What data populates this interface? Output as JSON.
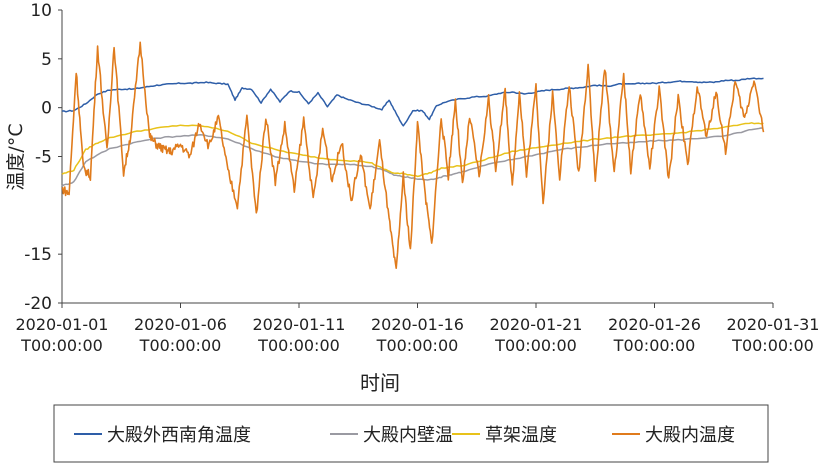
{
  "chart_data": {
    "type": "line",
    "title": "",
    "xlabel": "时间",
    "ylabel": "温度/°C",
    "ylim": [
      -20,
      10
    ],
    "y_ticks": [
      10,
      5,
      0,
      -5,
      -15,
      -20
    ],
    "y_tick_labels": [
      "10",
      "5",
      "0",
      "-5",
      "-15",
      "-20"
    ],
    "y_ticks_note": "tick labels as printed: 10, 5, 0, -5, -15, -20 (labels after -5 appear to skip -10 in the original figure)",
    "x_range_days": [
      0,
      30
    ],
    "x_ticks": [
      {
        "day": 0,
        "line1": "2020-01-01",
        "line2": "T00:00:00"
      },
      {
        "day": 5,
        "line1": "2020-01-06",
        "line2": "T00:00:00"
      },
      {
        "day": 10,
        "line1": "2020-01-11",
        "line2": "T00:00:00"
      },
      {
        "day": 15,
        "line1": "2020-01-16",
        "line2": "T00:00:00"
      },
      {
        "day": 20,
        "line1": "2020-01-21",
        "line2": "T00:00:00"
      },
      {
        "day": 25,
        "line1": "2020-01-26",
        "line2": "T00:00:00"
      },
      {
        "day": 30,
        "line1": "2020-01-31",
        "line2": "T00:00:00"
      }
    ],
    "legend_position": "bottom",
    "series": [
      {
        "name": "大殿外西南角温度",
        "color": "#2e5ea8",
        "style": "smooth",
        "days": [
          0,
          0.5,
          1,
          1.5,
          2,
          2.5,
          3,
          3.5,
          4,
          4.5,
          5,
          5.5,
          6,
          6.5,
          7,
          7.3,
          7.6,
          8,
          8.4,
          8.8,
          9.2,
          9.6,
          10,
          10.4,
          10.8,
          11.2,
          11.6,
          12,
          12.5,
          13,
          13.5,
          13.8,
          14.1,
          14.4,
          14.8,
          15.2,
          15.5,
          15.8,
          16.2,
          16.8,
          17.4,
          18,
          18.5,
          19,
          19.5,
          20,
          20.5,
          21,
          21.5,
          22,
          22.5,
          23,
          23.5,
          24,
          24.5,
          25,
          25.5,
          26,
          26.5,
          27,
          27.5,
          28,
          28.5,
          29,
          29.6
        ],
        "values": [
          -0.4,
          -0.3,
          0.4,
          1.4,
          1.8,
          1.9,
          1.9,
          2.1,
          2.3,
          2.4,
          2.5,
          2.5,
          2.6,
          2.5,
          2.4,
          0.8,
          2.0,
          1.9,
          0.5,
          1.9,
          0.6,
          1.7,
          1.6,
          0.4,
          1.5,
          0.1,
          1.3,
          0.9,
          0.5,
          0.2,
          -0.2,
          0.8,
          -0.6,
          -1.9,
          -0.3,
          -0.3,
          -1.2,
          0.2,
          0.6,
          0.9,
          1.1,
          1.2,
          1.5,
          1.6,
          1.4,
          1.6,
          1.8,
          1.9,
          2.0,
          2.1,
          2.3,
          2.2,
          2.4,
          2.4,
          2.5,
          2.5,
          2.6,
          2.7,
          2.7,
          2.6,
          2.6,
          2.8,
          2.8,
          3.0,
          3.0
        ]
      },
      {
        "name": "大殿内壁温",
        "color": "#9a9aa2",
        "style": "smooth",
        "days": [
          0,
          0.5,
          1,
          2,
          3,
          4,
          5,
          6,
          7,
          8,
          9,
          10,
          11,
          12,
          13,
          13.5,
          14,
          14.5,
          15,
          15.5,
          16,
          16.5,
          17,
          18,
          19,
          20,
          21,
          22,
          23,
          24,
          25,
          26,
          27,
          28,
          29,
          29.6
        ],
        "values": [
          -8.0,
          -7.6,
          -5.5,
          -4.2,
          -3.6,
          -3.1,
          -2.9,
          -2.8,
          -3.2,
          -4.2,
          -5.0,
          -5.5,
          -5.8,
          -5.8,
          -6.0,
          -6.3,
          -6.9,
          -7.1,
          -7.3,
          -7.4,
          -7.1,
          -6.8,
          -6.5,
          -5.8,
          -5.3,
          -4.8,
          -4.3,
          -4.0,
          -3.7,
          -3.6,
          -3.4,
          -3.3,
          -3.1,
          -2.9,
          -2.3,
          -2.1
        ]
      },
      {
        "name": "草架温度",
        "color": "#e8c21a",
        "style": "smooth",
        "days": [
          0,
          0.5,
          1,
          1.5,
          2,
          3,
          4,
          5,
          6,
          7,
          8,
          9,
          10,
          11,
          12,
          13,
          13.5,
          14,
          14.5,
          15,
          15.5,
          16,
          17,
          18,
          19,
          20,
          21,
          22,
          23,
          24,
          25,
          26,
          27,
          28,
          29,
          29.6
        ],
        "values": [
          -6.8,
          -6.4,
          -4.3,
          -3.6,
          -3.1,
          -2.5,
          -2.1,
          -1.8,
          -1.9,
          -2.4,
          -3.6,
          -4.3,
          -4.8,
          -5.2,
          -5.4,
          -5.6,
          -6.2,
          -6.7,
          -6.8,
          -7.0,
          -6.7,
          -6.2,
          -5.9,
          -5.2,
          -4.5,
          -4.1,
          -3.7,
          -3.4,
          -3.1,
          -2.9,
          -2.8,
          -2.6,
          -2.3,
          -2.0,
          -1.6,
          -1.6
        ]
      },
      {
        "name": "大殿内温度",
        "color": "#e07b1c",
        "style": "jagged",
        "days": [
          0,
          0.3,
          0.6,
          0.9,
          1.2,
          1.5,
          1.9,
          2.2,
          2.6,
          2.9,
          3.3,
          3.7,
          4.0,
          4.3,
          4.6,
          5.0,
          5.4,
          5.8,
          6.2,
          6.6,
          7.0,
          7.4,
          7.8,
          8.2,
          8.6,
          9.0,
          9.4,
          9.8,
          10.2,
          10.6,
          11.0,
          11.4,
          11.8,
          12.2,
          12.6,
          13.0,
          13.4,
          13.8,
          14.1,
          14.4,
          14.7,
          15.0,
          15.3,
          15.6,
          16.0,
          16.3,
          16.6,
          16.9,
          17.2,
          17.6,
          18.0,
          18.3,
          18.7,
          19.0,
          19.3,
          19.6,
          20.0,
          20.3,
          20.7,
          21.0,
          21.4,
          21.8,
          22.2,
          22.5,
          22.9,
          23.3,
          23.7,
          24.0,
          24.4,
          24.8,
          25.2,
          25.6,
          26.0,
          26.4,
          26.8,
          27.2,
          27.6,
          28.0,
          28.4,
          28.8,
          29.2,
          29.6
        ],
        "values": [
          -8.3,
          -8.8,
          3.8,
          -6.2,
          -7.0,
          6.2,
          -4.5,
          6.4,
          -6.7,
          -2.8,
          6.6,
          -3.0,
          -3.8,
          -4.3,
          -4.5,
          -3.8,
          -5.0,
          -1.5,
          -4.0,
          -1.0,
          -6.5,
          -10.0,
          -0.9,
          -11.0,
          -0.8,
          -7.6,
          -1.8,
          -8.5,
          -1.2,
          -9.5,
          -2.2,
          -7.4,
          -3.5,
          -9.5,
          -4.8,
          -10.5,
          -3.5,
          -11.5,
          -16.8,
          -7.0,
          -14.8,
          -1.5,
          -8.5,
          -14.0,
          -1.0,
          -7.0,
          0.8,
          -8.0,
          -0.9,
          -7.0,
          1.0,
          -6.2,
          1.7,
          -8.3,
          1.8,
          -7.0,
          2.2,
          -9.8,
          1.4,
          -7.0,
          2.3,
          -6.8,
          4.5,
          -7.5,
          4.2,
          -6.6,
          3.4,
          -6.5,
          1.6,
          -6.2,
          1.9,
          -7.5,
          1.3,
          -6.0,
          2.3,
          -3.1,
          1.6,
          -4.5,
          2.7,
          -1.2,
          3.0,
          -2.5
        ]
      }
    ]
  }
}
